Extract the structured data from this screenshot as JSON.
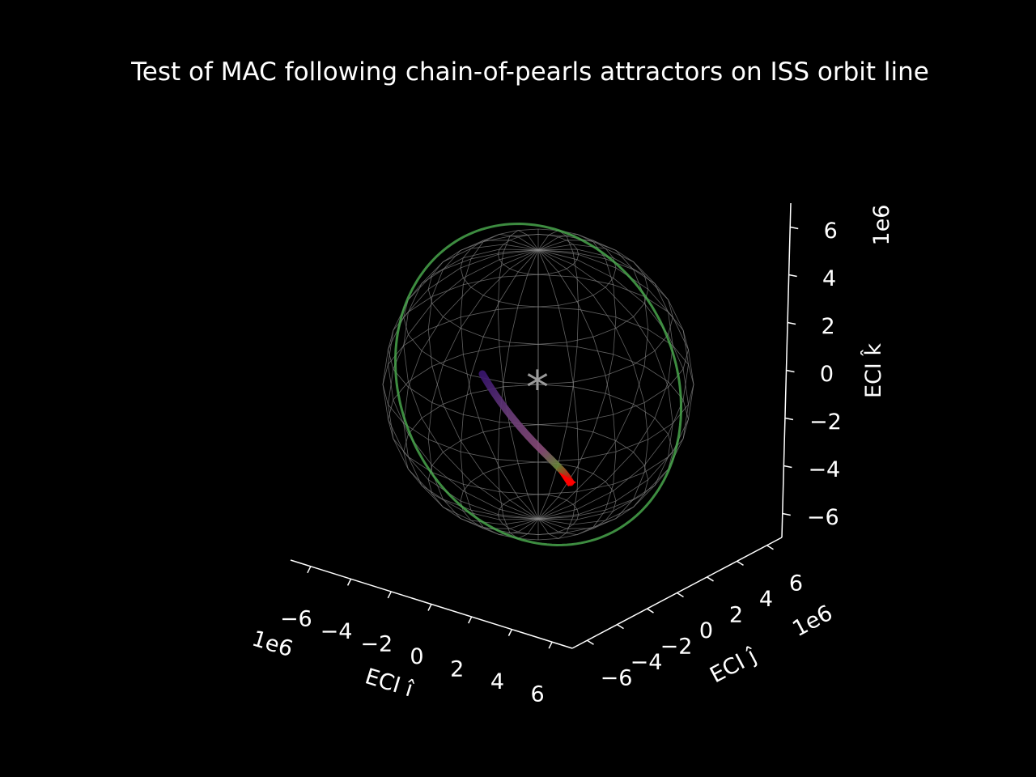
{
  "chart_data": {
    "type": "3d-line",
    "title": "Test of MAC following chain-of-pearls attractors on ISS orbit line",
    "background": "#000000",
    "axes": {
      "x": {
        "label": "ECI î",
        "offset_label": "1e6",
        "ticks": [
          "−6",
          "−4",
          "−2",
          "0",
          "2",
          "4",
          "6"
        ],
        "tick_values": [
          -6,
          -4,
          -2,
          0,
          2,
          4,
          6
        ],
        "lim": [
          -7,
          7
        ]
      },
      "y": {
        "label": "ECI ĵ",
        "offset_label": "1e6",
        "ticks": [
          "−6",
          "−4",
          "−2",
          "0",
          "2",
          "4",
          "6"
        ],
        "tick_values": [
          -6,
          -4,
          -2,
          0,
          2,
          4,
          6
        ],
        "lim": [
          -7,
          7
        ]
      },
      "z": {
        "label": "ECI k̂",
        "offset_label": "1e6",
        "ticks": [
          "−6",
          "−4",
          "−2",
          "0",
          "2",
          "4",
          "6"
        ],
        "tick_values": [
          -6,
          -4,
          -2,
          0,
          2,
          4,
          6
        ],
        "lim": [
          -7,
          7
        ]
      }
    },
    "earth": {
      "radius": 6.371,
      "wireframe_color": "#8a8a8a",
      "center_marker": "*"
    },
    "series": [
      {
        "kind": "orbit",
        "color": "#4caf50",
        "radius": 6.78,
        "inclination_deg": 51.6
      },
      {
        "kind": "trajectory",
        "colors": [
          "#3a1670",
          "#6b3d7a",
          "#8a4d78",
          "#6b8a3c",
          "#ff0000"
        ]
      }
    ]
  }
}
